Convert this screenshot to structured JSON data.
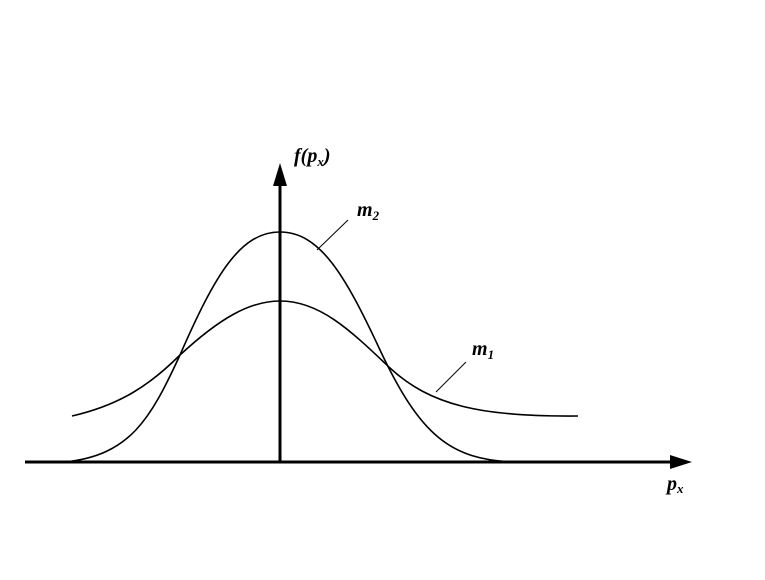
{
  "y_axis": {
    "label": {
      "base": "f(p",
      "sub": "x",
      "tail": ")"
    }
  },
  "x_axis": {
    "label": {
      "base": "p",
      "sub": "x"
    }
  },
  "curves": [
    {
      "name": "m",
      "sub": "1"
    },
    {
      "name": "m",
      "sub": "2"
    }
  ]
}
